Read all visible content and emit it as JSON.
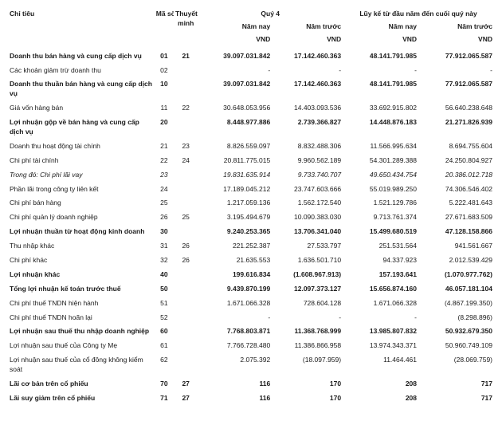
{
  "colors": {
    "text": "#1a1a1a",
    "background": "#ffffff"
  },
  "fontsize_pt": 8.5,
  "header": {
    "chitieu": "Chỉ tiêu",
    "maso": "Mã số",
    "thuyetminh": "Thuyết minh",
    "quy4": "Quý 4",
    "luyke": "Lũy kế từ đầu năm đến cuối quý này",
    "namnay": "Năm nay",
    "namtruoc": "Năm trước",
    "vnd": "VND"
  },
  "rows": [
    {
      "bold": true,
      "label": "Doanh thu bán hàng và cung cấp dịch vụ",
      "ms": "01",
      "tm": "21",
      "q4a": "39.097.031.842",
      "q4b": "17.142.460.363",
      "la": "48.141.791.985",
      "lb": "77.912.065.587"
    },
    {
      "label": "Các khoản giảm trừ doanh thu",
      "ms": "02",
      "tm": "",
      "q4a": "-",
      "q4b": "-",
      "la": "-",
      "lb": "-"
    },
    {
      "bold": true,
      "label": "Doanh thu thuần bán hàng và cung cấp dịch vụ",
      "ms": "10",
      "tm": "",
      "q4a": "39.097.031.842",
      "q4b": "17.142.460.363",
      "la": "48.141.791.985",
      "lb": "77.912.065.587"
    },
    {
      "label": "Giá vốn hàng bán",
      "ms": "11",
      "tm": "22",
      "q4a": "30.648.053.956",
      "q4b": "14.403.093.536",
      "la": "33.692.915.802",
      "lb": "56.640.238.648"
    },
    {
      "bold": true,
      "label": "Lợi nhuận gộp về bán hàng và cung cấp dịch vụ",
      "ms": "20",
      "tm": "",
      "q4a": "8.448.977.886",
      "q4b": "2.739.366.827",
      "la": "14.448.876.183",
      "lb": "21.271.826.939"
    },
    {
      "label": "Doanh thu hoạt động tài chính",
      "ms": "21",
      "tm": "23",
      "q4a": "8.826.559.097",
      "q4b": "8.832.488.306",
      "la": "11.566.995.634",
      "lb": "8.694.755.604"
    },
    {
      "label": "Chi phí tài chính",
      "ms": "22",
      "tm": "24",
      "q4a": "20.811.775.015",
      "q4b": "9.960.562.189",
      "la": "54.301.289.388",
      "lb": "24.250.804.927"
    },
    {
      "italic": true,
      "label": "Trong đó: Chi phí lãi vay",
      "ms": "23",
      "tm": "",
      "q4a": "19.831.635.914",
      "q4b": "9.733.740.707",
      "la": "49.650.434.754",
      "lb": "20.386.012.718"
    },
    {
      "label": "Phần lãi trong công ty liên kết",
      "ms": "24",
      "tm": "",
      "q4a": "17.189.045.212",
      "q4b": "23.747.603.666",
      "la": "55.019.989.250",
      "lb": "74.306.546.402"
    },
    {
      "label": "Chi phí bán hàng",
      "ms": "25",
      "tm": "",
      "q4a": "1.217.059.136",
      "q4b": "1.562.172.540",
      "la": "1.521.129.786",
      "lb": "5.222.481.643"
    },
    {
      "label": "Chi phí quản lý doanh nghiệp",
      "ms": "26",
      "tm": "25",
      "q4a": "3.195.494.679",
      "q4b": "10.090.383.030",
      "la": "9.713.761.374",
      "lb": "27.671.683.509"
    },
    {
      "bold": true,
      "label": "Lợi nhuận thuần từ hoạt động kinh doanh",
      "ms": "30",
      "tm": "",
      "q4a": "9.240.253.365",
      "q4b": "13.706.341.040",
      "la": "15.499.680.519",
      "lb": "47.128.158.866"
    },
    {
      "label": "Thu nhập khác",
      "ms": "31",
      "tm": "26",
      "q4a": "221.252.387",
      "q4b": "27.533.797",
      "la": "251.531.564",
      "lb": "941.561.667"
    },
    {
      "label": "Chi phí khác",
      "ms": "32",
      "tm": "26",
      "q4a": "21.635.553",
      "q4b": "1.636.501.710",
      "la": "94.337.923",
      "lb": "2.012.539.429"
    },
    {
      "bold": true,
      "label": "Lợi nhuận khác",
      "ms": "40",
      "tm": "",
      "q4a": "199.616.834",
      "q4b": "(1.608.967.913)",
      "la": "157.193.641",
      "lb": "(1.070.977.762)"
    },
    {
      "bold": true,
      "label": "Tổng lợi nhuận kế toán trước thuế",
      "ms": "50",
      "tm": "",
      "q4a": "9.439.870.199",
      "q4b": "12.097.373.127",
      "la": "15.656.874.160",
      "lb": "46.057.181.104"
    },
    {
      "label": "Chi phí thuế TNDN hiện hành",
      "ms": "51",
      "tm": "",
      "q4a": "1.671.066.328",
      "q4b": "728.604.128",
      "la": "1.671.066.328",
      "lb": "(4.867.199.350)"
    },
    {
      "label": "Chi phí thuế TNDN hoãn lại",
      "ms": "52",
      "tm": "",
      "q4a": "-",
      "q4b": "-",
      "la": "-",
      "lb": "(8.298.896)"
    },
    {
      "bold": true,
      "label": "Lợi nhuận sau thuế thu nhập doanh nghiệp",
      "ms": "60",
      "tm": "",
      "q4a": "7.768.803.871",
      "q4b": "11.368.768.999",
      "la": "13.985.807.832",
      "lb": "50.932.679.350"
    },
    {
      "label": "Lợi nhuận sau thuế của Công ty Mẹ",
      "ms": "61",
      "tm": "",
      "q4a": "7.766.728.480",
      "q4b": "11.386.866.958",
      "la": "13.974.343.371",
      "lb": "50.960.749.109"
    },
    {
      "label": "Lợi nhuận sau thuế của cổ đông không kiểm soát",
      "ms": "62",
      "tm": "",
      "q4a": "2.075.392",
      "q4b": "(18.097.959)",
      "la": "11.464.461",
      "lb": "(28.069.759)"
    },
    {
      "bold": true,
      "label": "Lãi cơ bản trên cổ phiếu",
      "ms": "70",
      "tm": "27",
      "q4a": "116",
      "q4b": "170",
      "la": "208",
      "lb": "717"
    },
    {
      "bold": true,
      "label": "Lãi suy giảm trên cổ phiếu",
      "ms": "71",
      "tm": "27",
      "q4a": "116",
      "q4b": "170",
      "la": "208",
      "lb": "717"
    }
  ]
}
